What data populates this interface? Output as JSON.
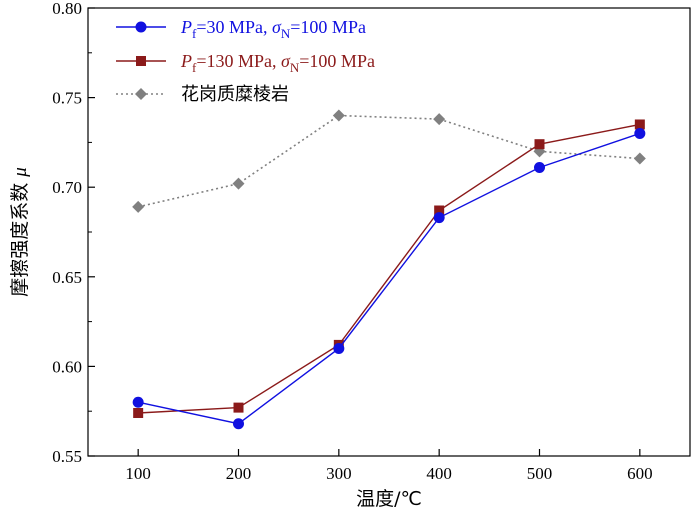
{
  "chart_data": {
    "type": "line",
    "title": "",
    "xlabel": "温度/℃",
    "ylabel": "摩擦强度系数 μ",
    "x": [
      100,
      200,
      300,
      400,
      500,
      600
    ],
    "xlim": [
      50,
      650
    ],
    "ylim": [
      0.55,
      0.8
    ],
    "x_ticks": [
      100,
      200,
      300,
      400,
      500,
      600
    ],
    "y_ticks": [
      0.55,
      0.6,
      0.65,
      0.7,
      0.75,
      0.8
    ],
    "x_tick_labels": [
      "100",
      "200",
      "300",
      "400",
      "500",
      "600"
    ],
    "y_tick_labels": [
      "0.55",
      "0.60",
      "0.65",
      "0.70",
      "0.75",
      "0.80"
    ],
    "grid": false,
    "legend_position": "top-left",
    "series": [
      {
        "name": "Pf=30 MPa, σN=100 MPa",
        "legend_parts": {
          "p": "P",
          "p_sub": "f",
          "mid": "=30 MPa, ",
          "sigma": "σ",
          "sigma_sub": "N",
          "tail": "=100 MPa"
        },
        "color": "#1010e0",
        "marker": "circle",
        "line_style": "solid",
        "values": [
          0.58,
          0.568,
          0.61,
          0.683,
          0.711,
          0.73
        ]
      },
      {
        "name": "Pf=130 MPa, σN=100 MPa",
        "legend_parts": {
          "p": "P",
          "p_sub": "f",
          "mid": "=130 MPa, ",
          "sigma": "σ",
          "sigma_sub": "N",
          "tail": "=100 MPa"
        },
        "color": "#8b1a1a",
        "marker": "square",
        "line_style": "solid",
        "values": [
          0.574,
          0.577,
          0.612,
          0.687,
          0.724,
          0.735
        ]
      },
      {
        "name": "花岗质糜棱岩",
        "color": "#808080",
        "marker": "diamond",
        "line_style": "dotted",
        "values": [
          0.689,
          0.702,
          0.74,
          0.738,
          0.72,
          0.716
        ]
      }
    ]
  }
}
